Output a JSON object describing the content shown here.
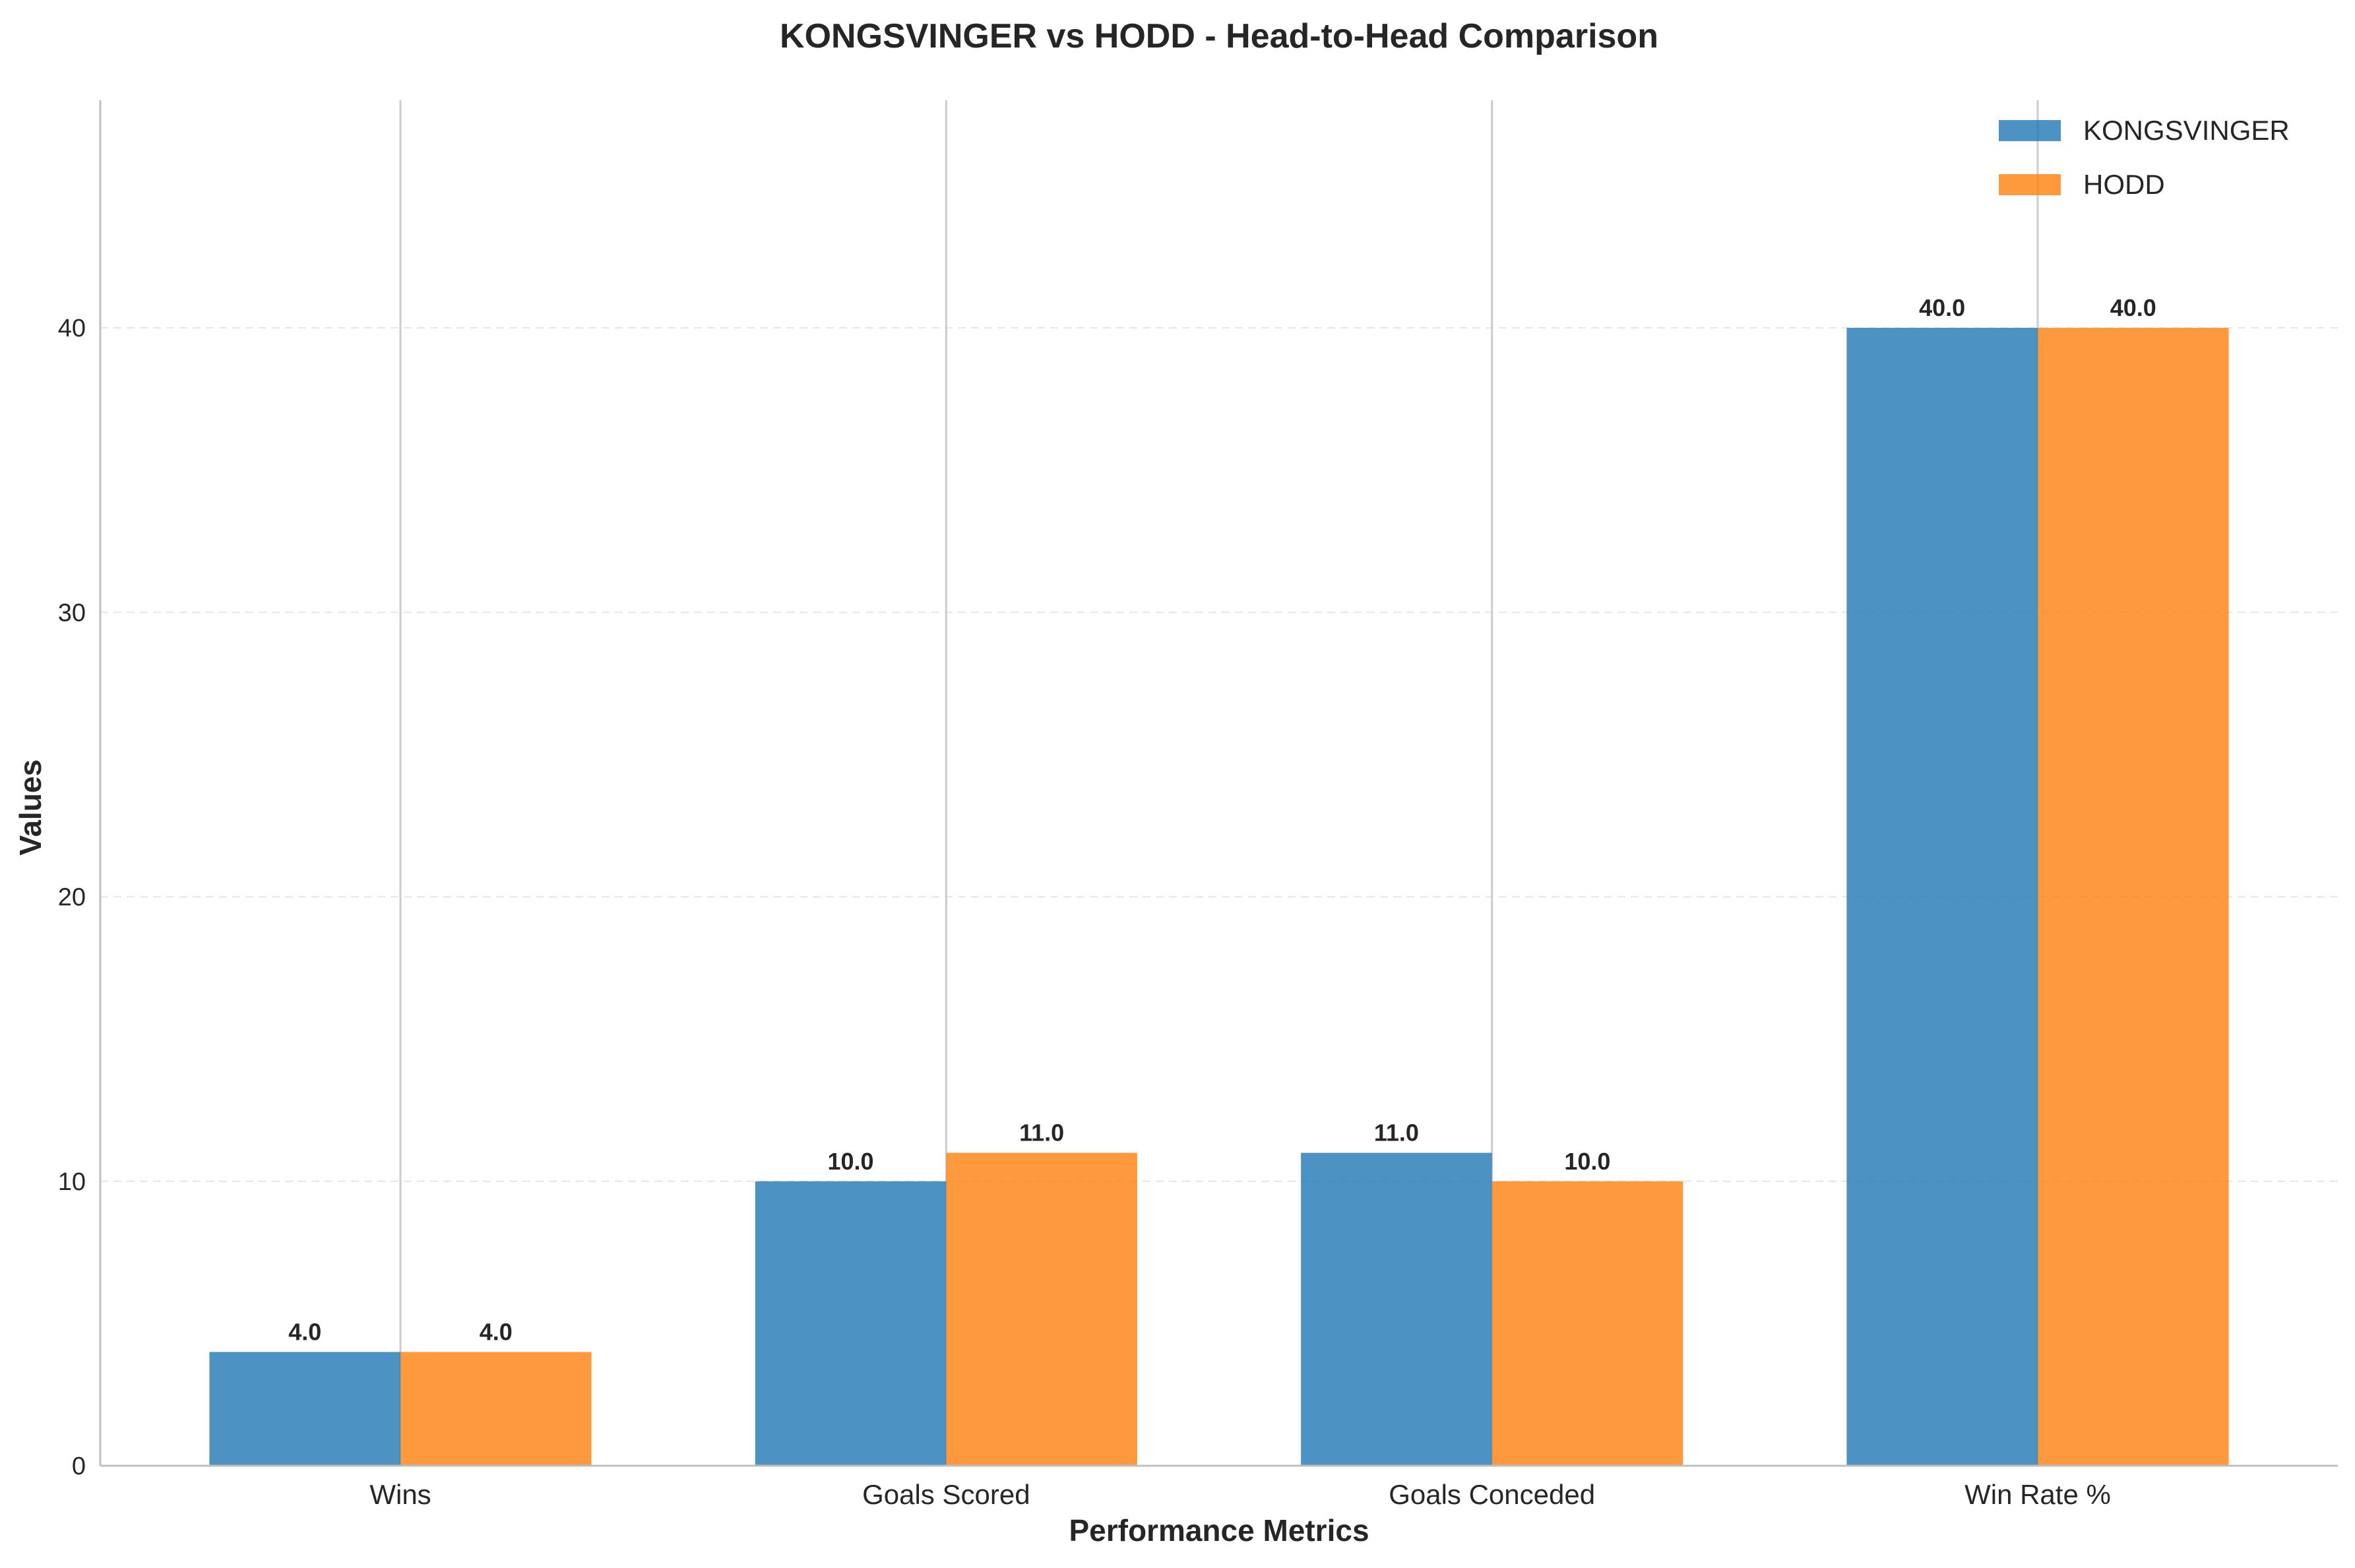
{
  "chart_data": {
    "type": "bar",
    "title": "KONGSVINGER vs HODD - Head-to-Head Comparison",
    "xlabel": "Performance Metrics",
    "ylabel": "Values",
    "categories": [
      "Wins",
      "Goals Scored",
      "Goals Conceded",
      "Win Rate %"
    ],
    "series": [
      {
        "name": "KONGSVINGER",
        "values": [
          4.0,
          10.0,
          11.0,
          40.0
        ],
        "color": "#1f77b4"
      },
      {
        "name": "HODD",
        "values": [
          4.0,
          11.0,
          10.0,
          40.0
        ],
        "color": "#ff7f0e"
      }
    ],
    "data_labels": [
      [
        "4.0",
        "10.0",
        "11.0",
        "40.0"
      ],
      [
        "4.0",
        "11.0",
        "10.0",
        "40.0"
      ]
    ],
    "ylim": [
      0,
      48
    ],
    "yticks": [
      0,
      10,
      20,
      30,
      40
    ],
    "ytick_labels": [
      "0",
      "10",
      "20",
      "30",
      "40"
    ],
    "grid": "y-dashed",
    "legend": "top-right"
  }
}
